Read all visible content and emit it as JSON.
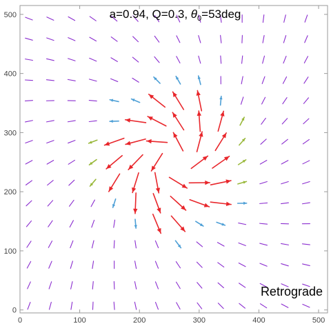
{
  "chart_data": {
    "type": "vector_field",
    "title": {
      "text_before": "a=0.94, Q=0.3, ",
      "theta_symbol": "θ",
      "theta_subscript": "0",
      "text_after": "=53deg"
    },
    "annotation": "Retrograde",
    "xlim": [
      0,
      515
    ],
    "ylim": [
      -5,
      515
    ],
    "x_ticks": [
      0,
      100,
      200,
      300,
      400,
      500
    ],
    "y_ticks": [
      0,
      100,
      200,
      300,
      400,
      500
    ],
    "frame": "box",
    "grid": false,
    "vector_sampling": {
      "x_start": 15,
      "x_step": 35.7,
      "x_count": 14,
      "y_start": 7,
      "y_step": 34.7,
      "y_count": 15,
      "center": [
        255,
        255
      ],
      "inner_radius": 18,
      "strong_radius": 115,
      "weak_radius": 145
    },
    "colors": {
      "strong": "#e8262b",
      "moderate": "#4d9fd6",
      "transition": "#99b83a",
      "weak": "#8a2ccf",
      "frame": "#9a9a9a",
      "tick_label": "#444444"
    }
  }
}
